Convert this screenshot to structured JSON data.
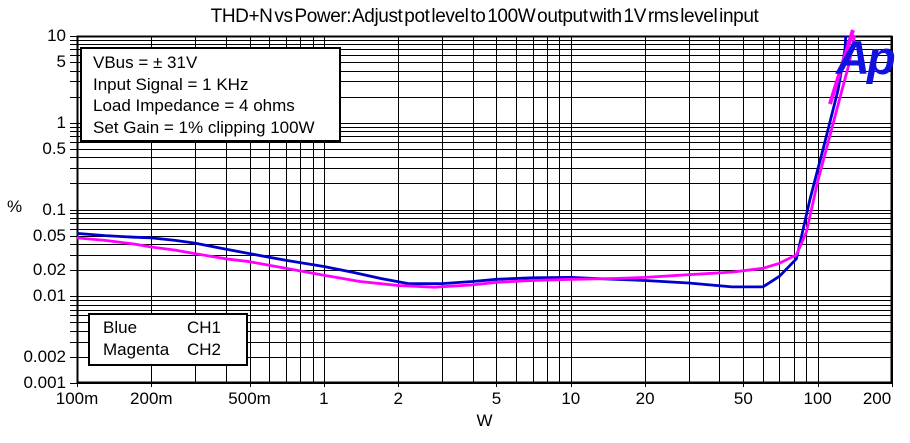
{
  "title": "THD+N vs Power: Adjust pot level to 100W output with 1V rms level input",
  "annotation_box": {
    "lines": [
      "VBus = ± 31V",
      "Input Signal = 1 KHz",
      "Load Impedance = 4 ohms",
      "Set Gain = 1% clipping 100W"
    ]
  },
  "trace_legend": {
    "rows": [
      {
        "color_name": "Blue",
        "channel": "CH1"
      },
      {
        "color_name": "Magenta",
        "channel": "CH2"
      }
    ]
  },
  "logo": {
    "text": "Ap",
    "color": "#1212e0",
    "slash_color": "#ff00ff"
  },
  "colors": {
    "grid": "#000000",
    "background": "#ffffff",
    "text": "#000000",
    "trace_ch1": "#0000cd",
    "trace_ch2": "#ff00ff"
  },
  "chart_data": {
    "type": "line",
    "title": "THD+N vs Power: Adjust pot level to 100W output with 1V rms level input",
    "xlabel": "W",
    "ylabel": "%",
    "x_scale": "log",
    "y_scale": "log",
    "xlim": [
      0.1,
      200
    ],
    "ylim": [
      0.001,
      10
    ],
    "grid": "full log minor grid, black on white",
    "legend_position": "boxed annotation top-left; trace color key bottom-left",
    "x_ticks": [
      {
        "v": 0.1,
        "label": "100m"
      },
      {
        "v": 0.2,
        "label": "200m"
      },
      {
        "v": 0.5,
        "label": "500m"
      },
      {
        "v": 1,
        "label": "1"
      },
      {
        "v": 2,
        "label": "2"
      },
      {
        "v": 5,
        "label": "5"
      },
      {
        "v": 10,
        "label": "10"
      },
      {
        "v": 20,
        "label": "20"
      },
      {
        "v": 50,
        "label": "50"
      },
      {
        "v": 100,
        "label": "100"
      },
      {
        "v": 200,
        "label": "200",
        "dx": -15
      }
    ],
    "y_ticks": [
      {
        "v": 10,
        "label": "10"
      },
      {
        "v": 5,
        "label": "5"
      },
      {
        "v": 1,
        "label": "1"
      },
      {
        "v": 0.5,
        "label": "0.5"
      },
      {
        "v": 0.1,
        "label": "0.1"
      },
      {
        "v": 0.05,
        "label": "0.05"
      },
      {
        "v": 0.02,
        "label": "0.02"
      },
      {
        "v": 0.01,
        "label": "0.01"
      },
      {
        "v": 0.002,
        "label": "0.002"
      },
      {
        "v": 0.001,
        "label": "0.001"
      }
    ],
    "series": [
      {
        "name": "CH1",
        "color": "#0000cd",
        "x": [
          0.1,
          0.13,
          0.17,
          0.2,
          0.25,
          0.3,
          0.4,
          0.5,
          0.7,
          1.0,
          1.3,
          1.7,
          2.2,
          3,
          4,
          5,
          7,
          10,
          14,
          20,
          30,
          45,
          60,
          70,
          82,
          93,
          107,
          121,
          129,
          130
        ],
        "y": [
          0.053,
          0.05,
          0.048,
          0.047,
          0.044,
          0.041,
          0.035,
          0.031,
          0.026,
          0.022,
          0.019,
          0.016,
          0.014,
          0.014,
          0.0148,
          0.0157,
          0.0163,
          0.0165,
          0.0158,
          0.0152,
          0.0142,
          0.0128,
          0.0128,
          0.017,
          0.027,
          0.13,
          0.6,
          2.4,
          7,
          10
        ]
      },
      {
        "name": "CH2",
        "color": "#ff00ff",
        "x": [
          0.1,
          0.13,
          0.17,
          0.2,
          0.25,
          0.3,
          0.4,
          0.5,
          0.7,
          1.0,
          1.4,
          2,
          2.8,
          4,
          5,
          7,
          10,
          15,
          20,
          30,
          45,
          60,
          70,
          82,
          90,
          100,
          110,
          125,
          134,
          141
        ],
        "y": [
          0.047,
          0.044,
          0.04,
          0.037,
          0.034,
          0.031,
          0.027,
          0.025,
          0.021,
          0.0175,
          0.0148,
          0.0133,
          0.0127,
          0.0135,
          0.0145,
          0.0152,
          0.0157,
          0.016,
          0.0165,
          0.0177,
          0.019,
          0.021,
          0.024,
          0.03,
          0.055,
          0.21,
          0.58,
          2.3,
          4.8,
          10
        ]
      }
    ]
  }
}
